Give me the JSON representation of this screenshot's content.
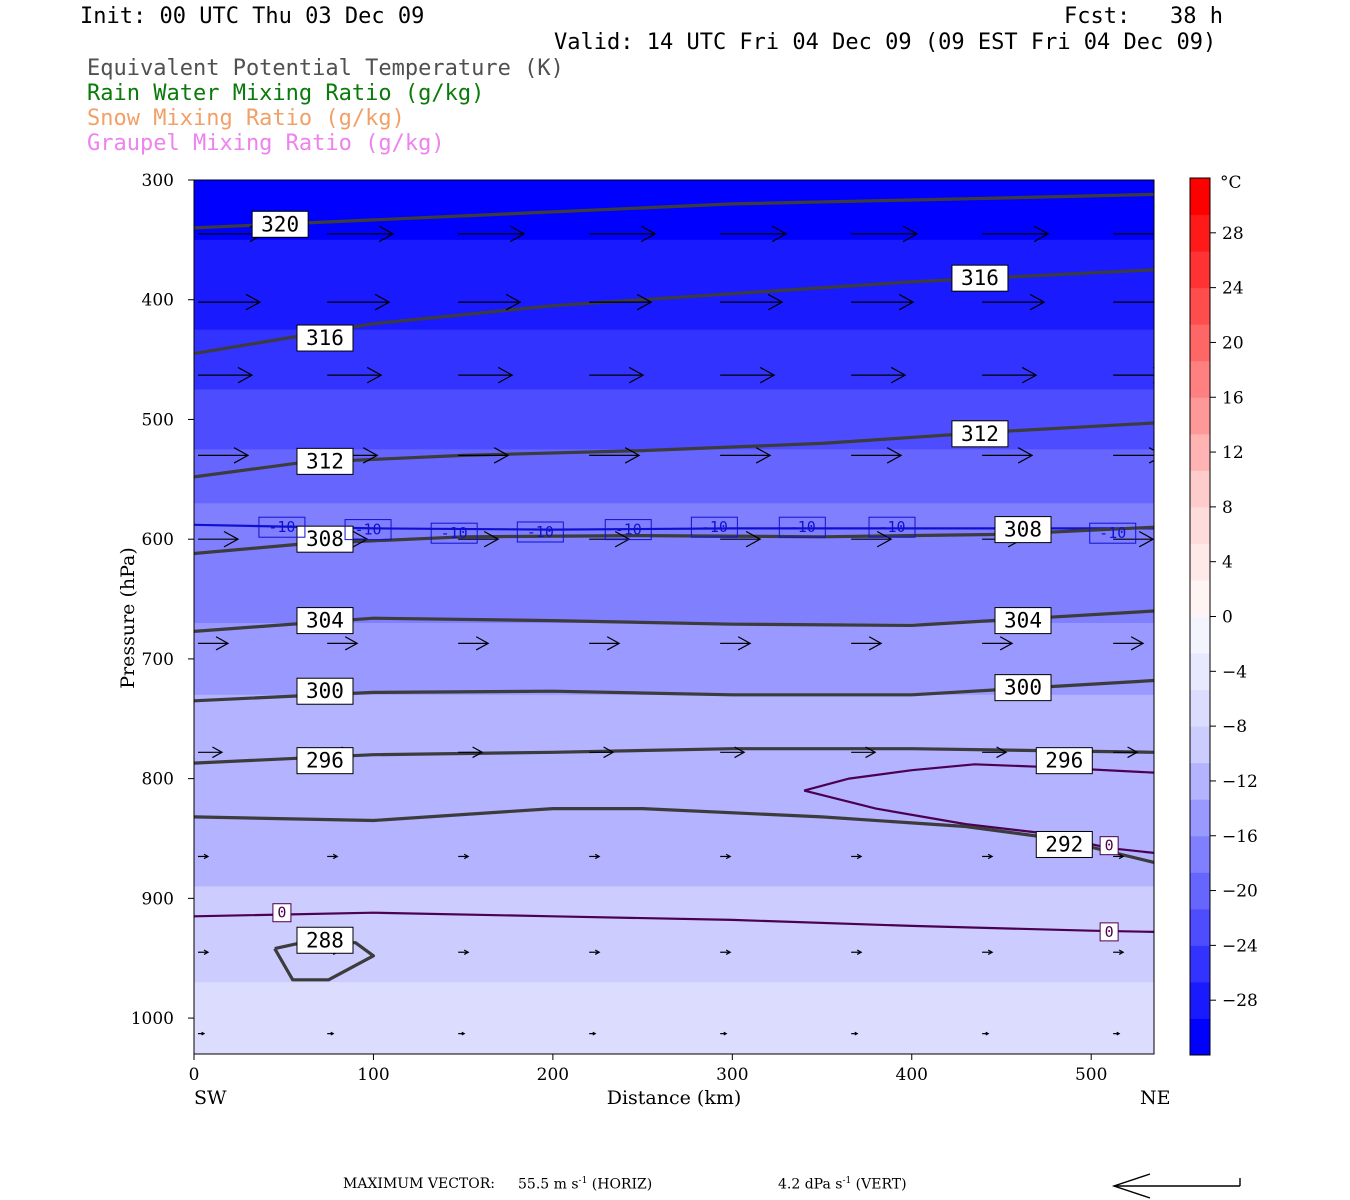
{
  "header": {
    "init": "Init: 00 UTC Thu 03 Dec 09",
    "fcst": "Fcst:   38 h",
    "valid": "Valid: 14 UTC Fri 04 Dec 09 (09 EST Fri 04 Dec 09)",
    "legend": [
      {
        "text": "Equivalent Potential Temperature (K)",
        "color": "#505050"
      },
      {
        "text": "Rain Water Mixing Ratio (g/kg)",
        "color": "#0a7a0a"
      },
      {
        "text": "Snow Mixing Ratio (g/kg)",
        "color": "#f2a068"
      },
      {
        "text": "Graupel Mixing Ratio (g/kg)",
        "color": "#ee82ee"
      }
    ]
  },
  "chart_data": {
    "type": "heatmap",
    "xlabel": "Distance (km)",
    "ylabel": "Pressure (hPa)",
    "xlim": [
      0,
      535
    ],
    "ylim": [
      1030,
      300
    ],
    "x_ticks": [
      0,
      100,
      200,
      300,
      400,
      500
    ],
    "y_ticks": [
      300,
      400,
      500,
      600,
      700,
      800,
      900,
      1000
    ],
    "x_end_labels": {
      "left": "SW",
      "right": "NE"
    },
    "temperature_by_pressure": [
      {
        "p": 300,
        "t": -30
      },
      {
        "p": 400,
        "t": -27
      },
      {
        "p": 450,
        "t": -24
      },
      {
        "p": 500,
        "t": -20
      },
      {
        "p": 550,
        "t": -16
      },
      {
        "p": 590,
        "t": -12
      },
      {
        "p": 640,
        "t": -9
      },
      {
        "p": 700,
        "t": -6
      },
      {
        "p": 760,
        "t": -4
      },
      {
        "p": 800,
        "t": -2
      },
      {
        "p": 870,
        "t": -1
      },
      {
        "p": 910,
        "t": 1
      },
      {
        "p": 950,
        "t": 3
      },
      {
        "p": 990,
        "t": 6
      },
      {
        "p": 1020,
        "t": 7
      }
    ],
    "colorbar": {
      "unit": "°C",
      "labels": [
        28,
        24,
        20,
        16,
        12,
        8,
        4,
        0,
        -4,
        -8,
        -12,
        -16,
        -20,
        -24,
        -28
      ],
      "min": -32,
      "max": 32,
      "step": 4,
      "colors": [
        "#0000ff",
        "#1a1aff",
        "#3333ff",
        "#4d4dff",
        "#6666ff",
        "#8080ff",
        "#9999ff",
        "#b3b3ff",
        "#ccccff",
        "#dcdcff",
        "#e8e8ff",
        "#f4f4ff",
        "#fff4f4",
        "#ffe8e8",
        "#ffdcdc",
        "#ffcccc",
        "#ffb3b3",
        "#ff9999",
        "#ff8080",
        "#ff6666",
        "#ff4d4d",
        "#ff3333",
        "#ff1a1a",
        "#ff0000"
      ]
    },
    "theta_e_contours": [
      {
        "value": 320,
        "points": [
          [
            0,
            340
          ],
          [
            150,
            330
          ],
          [
            300,
            320
          ],
          [
            450,
            315
          ],
          [
            535,
            312
          ]
        ]
      },
      {
        "value": 316,
        "points": [
          [
            0,
            445
          ],
          [
            100,
            420
          ],
          [
            200,
            405
          ],
          [
            300,
            395
          ],
          [
            400,
            385
          ],
          [
            535,
            375
          ]
        ]
      },
      {
        "value": 312,
        "points": [
          [
            0,
            548
          ],
          [
            60,
            536
          ],
          [
            150,
            530
          ],
          [
            250,
            526
          ],
          [
            350,
            520
          ],
          [
            450,
            510
          ],
          [
            535,
            503
          ]
        ]
      },
      {
        "value": 308,
        "points": [
          [
            0,
            612
          ],
          [
            60,
            604
          ],
          [
            150,
            598
          ],
          [
            250,
            597
          ],
          [
            350,
            598
          ],
          [
            450,
            596
          ],
          [
            535,
            590
          ]
        ]
      },
      {
        "value": 304,
        "points": [
          [
            0,
            677
          ],
          [
            100,
            666
          ],
          [
            200,
            668
          ],
          [
            300,
            671
          ],
          [
            400,
            672
          ],
          [
            535,
            660
          ]
        ]
      },
      {
        "value": 300,
        "points": [
          [
            0,
            735
          ],
          [
            100,
            728
          ],
          [
            200,
            727
          ],
          [
            300,
            730
          ],
          [
            400,
            730
          ],
          [
            535,
            718
          ]
        ]
      },
      {
        "value": 296,
        "points": [
          [
            0,
            787
          ],
          [
            100,
            780
          ],
          [
            200,
            778
          ],
          [
            300,
            775
          ],
          [
            400,
            775
          ],
          [
            535,
            778
          ]
        ]
      },
      {
        "value": 292,
        "points": [
          [
            0,
            832
          ],
          [
            100,
            835
          ],
          [
            200,
            825
          ],
          [
            250,
            825
          ],
          [
            350,
            832
          ],
          [
            430,
            840
          ],
          [
            480,
            850
          ],
          [
            535,
            870
          ]
        ]
      },
      {
        "value": 288,
        "points": [
          [
            45,
            942
          ],
          [
            55,
            968
          ],
          [
            75,
            968
          ],
          [
            100,
            948
          ],
          [
            90,
            937
          ],
          [
            60,
            937
          ],
          [
            45,
            942
          ]
        ]
      }
    ],
    "isotherms": [
      {
        "value": -10,
        "points": [
          [
            0,
            588
          ],
          [
            100,
            591
          ],
          [
            200,
            592
          ],
          [
            300,
            591
          ],
          [
            400,
            591
          ],
          [
            535,
            591
          ]
        ]
      },
      {
        "value": 0,
        "points": [
          [
            0,
            915
          ],
          [
            100,
            912
          ],
          [
            200,
            915
          ],
          [
            300,
            918
          ],
          [
            400,
            923
          ],
          [
            500,
            927
          ],
          [
            535,
            928
          ]
        ]
      },
      {
        "value": 0,
        "points": [
          [
            340,
            810
          ],
          [
            365,
            800
          ],
          [
            400,
            793
          ],
          [
            435,
            788
          ],
          [
            470,
            790
          ],
          [
            535,
            795
          ]
        ]
      },
      {
        "value": 0,
        "points": [
          [
            340,
            810
          ],
          [
            380,
            825
          ],
          [
            430,
            838
          ],
          [
            470,
            845
          ],
          [
            510,
            858
          ],
          [
            535,
            862
          ]
        ]
      }
    ],
    "wind_vectors": [
      {
        "p": 345,
        "x": [
          0,
          72,
          145,
          218,
          291,
          364,
          437,
          510
        ],
        "len": 66
      },
      {
        "p": 402,
        "x": [
          0,
          72,
          145,
          218,
          291,
          364,
          437,
          510
        ],
        "len": 62
      },
      {
        "p": 463,
        "x": [
          0,
          72,
          145,
          218,
          291,
          364,
          437,
          510
        ],
        "len": 54
      },
      {
        "p": 530,
        "x": [
          0,
          72,
          145,
          218,
          291,
          364,
          437,
          510
        ],
        "len": 50
      },
      {
        "p": 600,
        "x": [
          0,
          72,
          145,
          218,
          291,
          364,
          437,
          510
        ],
        "len": 40
      },
      {
        "p": 687,
        "x": [
          0,
          72,
          145,
          218,
          291,
          364,
          437,
          510
        ],
        "len": 30
      },
      {
        "p": 778,
        "x": [
          0,
          72,
          145,
          218,
          291,
          364,
          437,
          510
        ],
        "len": 24
      },
      {
        "p": 865,
        "x": [
          0,
          72,
          145,
          218,
          291,
          364,
          437,
          510
        ],
        "len": 10
      },
      {
        "p": 945,
        "x": [
          0,
          72,
          145,
          218,
          291,
          364,
          437,
          510
        ],
        "len": 10
      },
      {
        "p": 1013,
        "x": [
          0,
          72,
          145,
          218,
          291,
          364,
          437,
          510
        ],
        "len": 6
      }
    ],
    "contour_labels": [
      {
        "text": "320",
        "x": 48,
        "p": 337,
        "kind": "theta"
      },
      {
        "text": "316",
        "x": 73,
        "p": 432,
        "kind": "theta"
      },
      {
        "text": "316",
        "x": 438,
        "p": 382,
        "kind": "theta"
      },
      {
        "text": "312",
        "x": 73,
        "p": 535,
        "kind": "theta"
      },
      {
        "text": "312",
        "x": 438,
        "p": 512,
        "kind": "theta"
      },
      {
        "text": "308",
        "x": 73,
        "p": 600,
        "kind": "theta"
      },
      {
        "text": "308",
        "x": 462,
        "p": 592,
        "kind": "theta"
      },
      {
        "text": "304",
        "x": 73,
        "p": 668,
        "kind": "theta"
      },
      {
        "text": "304",
        "x": 462,
        "p": 668,
        "kind": "theta"
      },
      {
        "text": "300",
        "x": 73,
        "p": 727,
        "kind": "theta"
      },
      {
        "text": "300",
        "x": 462,
        "p": 724,
        "kind": "theta"
      },
      {
        "text": "296",
        "x": 73,
        "p": 785,
        "kind": "theta"
      },
      {
        "text": "296",
        "x": 485,
        "p": 785,
        "kind": "theta"
      },
      {
        "text": "292",
        "x": 485,
        "p": 855,
        "kind": "theta"
      },
      {
        "text": "288",
        "x": 73,
        "p": 935,
        "kind": "theta"
      },
      {
        "text": "-10",
        "x": 49,
        "p": 590,
        "kind": "iso10"
      },
      {
        "text": "-10",
        "x": 97,
        "p": 592,
        "kind": "iso10"
      },
      {
        "text": "-10",
        "x": 145,
        "p": 595,
        "kind": "iso10"
      },
      {
        "text": "-10",
        "x": 193,
        "p": 594,
        "kind": "iso10"
      },
      {
        "text": "-10",
        "x": 242,
        "p": 592,
        "kind": "iso10"
      },
      {
        "text": "-10",
        "x": 290,
        "p": 590,
        "kind": "iso10"
      },
      {
        "text": "-10",
        "x": 339,
        "p": 590,
        "kind": "iso10"
      },
      {
        "text": "-10",
        "x": 389,
        "p": 590,
        "kind": "iso10"
      },
      {
        "text": "-10",
        "x": 512,
        "p": 595,
        "kind": "iso10"
      },
      {
        "text": "0",
        "x": 49,
        "p": 912,
        "kind": "iso0"
      },
      {
        "text": "0",
        "x": 510,
        "p": 856,
        "kind": "iso0"
      },
      {
        "text": "0",
        "x": 510,
        "p": 928,
        "kind": "iso0"
      }
    ]
  },
  "footer": {
    "max_vector_label": "MAXIMUM VECTOR:",
    "horiz_value": "55.5 m s",
    "horiz_unit": " (HORIZ)",
    "vert_value": "4.2 dPa s",
    "vert_unit": " (VERT)",
    "exp": "-1"
  }
}
